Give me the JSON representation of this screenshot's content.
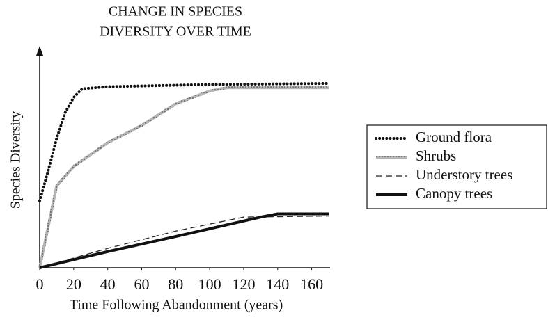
{
  "chart_data": {
    "type": "line",
    "title": [
      "CHANGE IN SPECIES",
      "DIVERSITY OVER TIME"
    ],
    "xlabel": "Time Following Abandonment (years)",
    "ylabel": "Species Diversity",
    "xlim": [
      0,
      170
    ],
    "xticks": [
      0,
      20,
      40,
      60,
      80,
      100,
      120,
      140,
      160
    ],
    "ylim": [
      0,
      100
    ],
    "legend": "right",
    "series": [
      {
        "name": "Ground flora",
        "color": "#111111",
        "style": "dotted",
        "x": [
          0,
          5,
          10,
          15,
          20,
          25,
          40,
          100,
          170
        ],
        "values": [
          31,
          45,
          60,
          72,
          79,
          83,
          84,
          85,
          85.5
        ]
      },
      {
        "name": "Shrubs",
        "color": "#9a9a9a",
        "style": "textured",
        "x": [
          0,
          10,
          20,
          40,
          60,
          80,
          100,
          110,
          170
        ],
        "values": [
          0,
          38,
          47,
          58,
          66,
          76,
          82,
          83.5,
          83.5
        ]
      },
      {
        "name": "Understory trees",
        "color": "#222222",
        "style": "dashed",
        "x": [
          0,
          40,
          80,
          120,
          170
        ],
        "values": [
          0,
          9,
          17,
          23.5,
          24
        ]
      },
      {
        "name": "Canopy trees",
        "color": "#111111",
        "style": "solid",
        "x": [
          0,
          40,
          80,
          130,
          140,
          170
        ],
        "values": [
          0,
          7.5,
          14.5,
          23.5,
          25,
          25
        ]
      }
    ]
  }
}
